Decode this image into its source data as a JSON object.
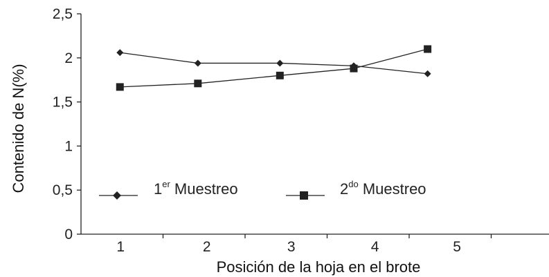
{
  "chart_data": {
    "type": "line",
    "title": "",
    "xlabel": "Posición de la hoja en el brote",
    "ylabel": "Contenido de N(%)",
    "x": [
      1,
      2,
      3,
      4,
      5
    ],
    "xlim": [
      0.5,
      6.0
    ],
    "ylim": [
      0,
      2.5
    ],
    "x_tick_labels": [
      "1",
      "2",
      "3",
      "4",
      "5"
    ],
    "y_tick_labels": [
      "0",
      "0,5",
      "1",
      "1,5",
      "2",
      "2,5"
    ],
    "y_tick_values": [
      0,
      0.5,
      1,
      1.5,
      2,
      2.5
    ],
    "grid": false,
    "legend_position": "center",
    "series": [
      {
        "name": "1er Muestreo",
        "label_main": "1",
        "label_sup": "er",
        "label_rest": " Muestreo",
        "marker": "diamond",
        "values": [
          2.06,
          1.94,
          1.94,
          1.91,
          1.82
        ],
        "x": [
          1,
          1.95,
          2.95,
          3.85,
          4.75
        ]
      },
      {
        "name": "2do Muestreo",
        "label_main": "2",
        "label_sup": "do",
        "label_rest": " Muestreo",
        "marker": "square",
        "values": [
          1.67,
          1.71,
          1.8,
          1.88,
          2.1
        ],
        "x": [
          1,
          1.95,
          2.95,
          3.85,
          4.75
        ]
      }
    ],
    "colors": {
      "line": "#222222",
      "marker": "#222222",
      "axis": "#222222"
    }
  }
}
